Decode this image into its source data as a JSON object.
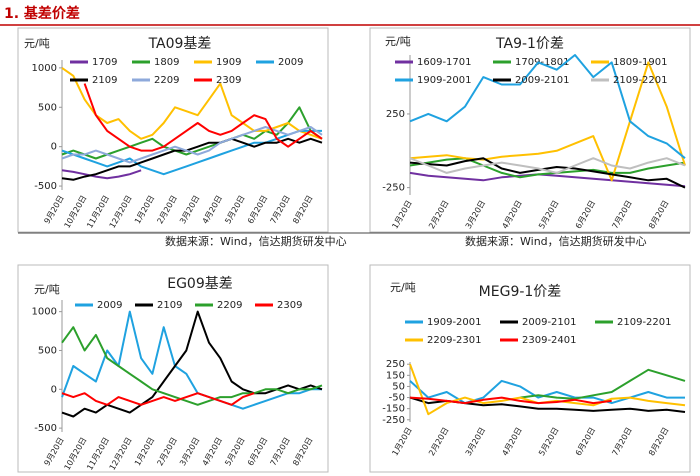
{
  "header": {
    "title": "1. 基差价差"
  },
  "sources": [
    "数据来源：Wind，信达期货研发中心",
    "数据来源：Wind，信达期货研发中心"
  ],
  "chart_data": [
    {
      "type": "line",
      "title": "TA09基差",
      "y_label": "元/吨",
      "grid": false,
      "categories": [
        "9月20日",
        null,
        "10月20日",
        null,
        "11月20日",
        null,
        "12月20日",
        null,
        "1月20日",
        null,
        "2月20日",
        null,
        "3月20日",
        null,
        "4月20日",
        null,
        "5月20日",
        null,
        "6月20日",
        null,
        "7月20日",
        null,
        "8月20日",
        null
      ],
      "ylim": [
        -550,
        1100
      ],
      "yticks": [
        -500,
        0,
        500,
        1000
      ],
      "series": [
        {
          "name": "1709",
          "color": "#7030a0",
          "values": [
            -300,
            -320,
            -350,
            -380,
            -400,
            -380,
            -350,
            -300,
            null,
            null,
            null,
            null,
            null,
            null,
            null,
            null,
            null,
            null,
            null,
            null,
            null,
            null,
            null,
            null
          ]
        },
        {
          "name": "1809",
          "color": "#2ca02c",
          "values": [
            -100,
            -50,
            -100,
            -150,
            -100,
            -50,
            0,
            50,
            100,
            0,
            -50,
            -100,
            -50,
            0,
            50,
            100,
            150,
            100,
            200,
            150,
            300,
            500,
            200,
            100
          ]
        },
        {
          "name": "1909",
          "color": "#ffc000",
          "values": [
            1000,
            900,
            600,
            400,
            300,
            350,
            200,
            100,
            150,
            300,
            500,
            450,
            400,
            600,
            800,
            400,
            300,
            200,
            200,
            250,
            300,
            200,
            150,
            100
          ]
        },
        {
          "name": "2009",
          "color": "#1fa2e0",
          "values": [
            -50,
            -100,
            -150,
            -200,
            -250,
            -200,
            -150,
            -250,
            -300,
            -350,
            -300,
            -250,
            -200,
            -150,
            -100,
            -50,
            0,
            50,
            50,
            100,
            150,
            200,
            200,
            200
          ]
        },
        {
          "name": "2109",
          "color": "#000000",
          "values": [
            -400,
            -420,
            -380,
            -350,
            -300,
            -250,
            -250,
            -200,
            -150,
            -100,
            -50,
            -50,
            0,
            50,
            50,
            100,
            50,
            0,
            50,
            50,
            100,
            50,
            100,
            50
          ]
        },
        {
          "name": "2209",
          "color": "#8ea9db",
          "values": [
            -150,
            -100,
            -100,
            -50,
            -100,
            -150,
            -200,
            -150,
            -100,
            -50,
            0,
            -50,
            -100,
            -50,
            50,
            100,
            150,
            200,
            250,
            200,
            150,
            200,
            250,
            150
          ]
        },
        {
          "name": "2309",
          "color": "#ff0000",
          "values": [
            null,
            null,
            800,
            400,
            200,
            100,
            0,
            -50,
            -50,
            0,
            100,
            200,
            300,
            200,
            150,
            200,
            300,
            400,
            350,
            100,
            0,
            100,
            200,
            100
          ]
        }
      ]
    },
    {
      "type": "line",
      "title": "TA9-1价差",
      "y_label": "元/吨",
      "grid": false,
      "categories": [
        "1月20日",
        null,
        "2月20日",
        null,
        "3月20日",
        null,
        "4月20日",
        null,
        "5月20日",
        null,
        "6月20日",
        null,
        "7月20日",
        null,
        "8月20日",
        null
      ],
      "ylim": [
        -300,
        650
      ],
      "yticks": [
        -250,
        250
      ],
      "series": [
        {
          "name": "1609-1701",
          "color": "#7030a0",
          "values": [
            -150,
            -170,
            -180,
            -190,
            -200,
            -180,
            -170,
            -160,
            -170,
            -180,
            -190,
            -200,
            -210,
            -220,
            -230,
            -240
          ]
        },
        {
          "name": "1709-1801",
          "color": "#2ca02c",
          "values": [
            -100,
            -80,
            -60,
            -50,
            -100,
            -150,
            -180,
            -160,
            -150,
            -140,
            -130,
            -150,
            -150,
            -120,
            -100,
            -80
          ]
        },
        {
          "name": "1809-1901",
          "color": "#ffc000",
          "values": [
            -50,
            -40,
            -30,
            -50,
            -60,
            -40,
            -30,
            -20,
            0,
            50,
            100,
            -200,
            200,
            600,
            300,
            -100
          ]
        },
        {
          "name": "1909-2001",
          "color": "#1fa2e0",
          "values": [
            200,
            250,
            200,
            300,
            500,
            450,
            450,
            600,
            550,
            650,
            500,
            600,
            200,
            100,
            50,
            -50
          ]
        },
        {
          "name": "2009-2101",
          "color": "#000000",
          "values": [
            -80,
            -90,
            -100,
            -70,
            -50,
            -120,
            -150,
            -130,
            -110,
            -120,
            -140,
            -160,
            -180,
            -200,
            -190,
            -250
          ]
        },
        {
          "name": "2109-2201",
          "color": "#bfbfbf",
          "values": [
            -50,
            -100,
            -150,
            -120,
            -100,
            -80,
            -100,
            -120,
            -150,
            -100,
            -50,
            -100,
            -120,
            -80,
            -50,
            -100
          ]
        }
      ]
    },
    {
      "type": "line",
      "title": "EG09基差",
      "y_label": "元/吨",
      "grid": false,
      "categories": [
        "9月20日",
        null,
        "10月20日",
        null,
        "11月20日",
        null,
        "12月20日",
        null,
        "1月20日",
        null,
        "2月20日",
        null,
        "3月20日",
        null,
        "4月20日",
        null,
        "5月20日",
        null,
        "6月20日",
        null,
        "7月20日",
        null,
        "8月20日",
        null
      ],
      "ylim": [
        -550,
        1150
      ],
      "yticks": [
        -500,
        0,
        500,
        1000
      ],
      "series": [
        {
          "name": "2009",
          "color": "#1fa2e0",
          "values": [
            -100,
            300,
            200,
            100,
            500,
            300,
            1000,
            400,
            200,
            800,
            300,
            200,
            -50,
            -100,
            -150,
            -200,
            -250,
            -200,
            -150,
            -100,
            -50,
            -50,
            0,
            0
          ]
        },
        {
          "name": "2109",
          "color": "#000000",
          "values": [
            -300,
            -350,
            -250,
            -300,
            -200,
            -250,
            -300,
            -200,
            -100,
            100,
            300,
            500,
            1000,
            600,
            400,
            100,
            0,
            -50,
            -50,
            0,
            50,
            0,
            50,
            0
          ]
        },
        {
          "name": "2209",
          "color": "#2ca02c",
          "values": [
            600,
            800,
            500,
            700,
            400,
            300,
            200,
            100,
            0,
            -50,
            -100,
            -150,
            -200,
            -150,
            -100,
            -100,
            -50,
            -50,
            0,
            0,
            -50,
            0,
            0,
            50
          ]
        },
        {
          "name": "2309",
          "color": "#ff0000",
          "values": [
            -50,
            -100,
            -50,
            -150,
            -200,
            -100,
            -150,
            -200,
            -150,
            -100,
            -150,
            -100,
            -50,
            -100,
            -150,
            -200,
            -100,
            -50,
            null,
            null,
            null,
            null,
            null,
            null
          ]
        }
      ]
    },
    {
      "type": "line",
      "title": "MEG9-1价差",
      "y_label": "元/吨",
      "grid": false,
      "categories": [
        "1月20日",
        null,
        "2月20日",
        null,
        "3月20日",
        null,
        "4月20日",
        null,
        "5月20日",
        null,
        "6月20日",
        null,
        "7月20日",
        null,
        "8月20日",
        null
      ],
      "ylim": [
        -270,
        270
      ],
      "yticks": [
        -250,
        -150,
        -50,
        50,
        150,
        250
      ],
      "series": [
        {
          "name": "1909-2001",
          "color": "#1fa2e0",
          "values": [
            100,
            -50,
            0,
            -100,
            -50,
            100,
            50,
            -50,
            0,
            -50,
            -50,
            -100,
            -50,
            0,
            -50,
            -50
          ]
        },
        {
          "name": "2009-2101",
          "color": "#000000",
          "values": [
            -50,
            -100,
            -80,
            -100,
            -120,
            -110,
            -130,
            -150,
            -150,
            -160,
            -170,
            -160,
            -150,
            -170,
            -160,
            -180
          ]
        },
        {
          "name": "2109-2201",
          "color": "#2ca02c",
          "values": [
            null,
            null,
            null,
            null,
            null,
            null,
            -50,
            -30,
            -50,
            -60,
            -30,
            0,
            100,
            200,
            150,
            100
          ]
        },
        {
          "name": "2209-2301",
          "color": "#ffc000",
          "values": [
            250,
            -200,
            -100,
            -50,
            -100,
            -80,
            -50,
            -100,
            -80,
            -100,
            -120,
            -60,
            -50,
            -80,
            -100,
            -120
          ]
        },
        {
          "name": "2309-2401",
          "color": "#ff0000",
          "values": [
            -50,
            -60,
            -80,
            -100,
            -70,
            -50,
            -80,
            -100,
            -90,
            -70,
            -100,
            -80,
            null,
            null,
            null,
            null
          ]
        }
      ]
    }
  ]
}
